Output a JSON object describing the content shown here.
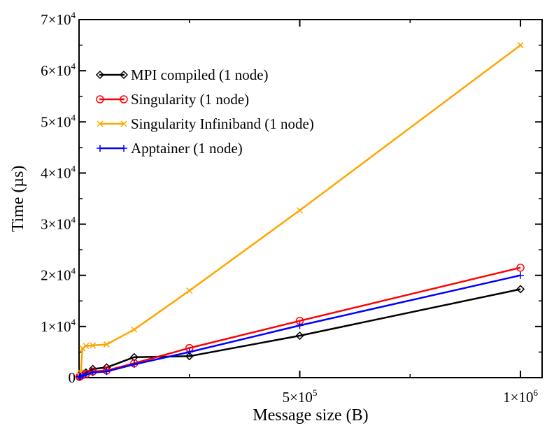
{
  "chart_data": {
    "type": "line",
    "xlabel": "Message size (B)",
    "ylabel": "Time (µs)",
    "xlim": [
      0,
      1100000
    ],
    "ylim": [
      0,
      70000
    ],
    "x_ticks": [
      {
        "value": 524288,
        "mantissa": "5",
        "exponent": "5"
      },
      {
        "value": 1048576,
        "mantissa": "1",
        "exponent": "6"
      }
    ],
    "y_ticks": [
      {
        "value": 0,
        "label": "0",
        "exponent": ""
      },
      {
        "value": 10000,
        "mantissa": "1",
        "exponent": "4"
      },
      {
        "value": 20000,
        "mantissa": "2",
        "exponent": "4"
      },
      {
        "value": 30000,
        "mantissa": "3",
        "exponent": "4"
      },
      {
        "value": 40000,
        "mantissa": "4",
        "exponent": "4"
      },
      {
        "value": 50000,
        "mantissa": "5",
        "exponent": "4"
      },
      {
        "value": 60000,
        "mantissa": "6",
        "exponent": "4"
      },
      {
        "value": 70000,
        "mantissa": "7",
        "exponent": "4"
      }
    ],
    "legend_position": "top-left",
    "grid": false,
    "x": [
      1024,
      2048,
      4096,
      8192,
      16384,
      32768,
      65536,
      131072,
      262144,
      524288,
      1048576
    ],
    "series": [
      {
        "name": "MPI compiled (1 node)",
        "color": "#000000",
        "marker": "diamond",
        "values": [
          200,
          300,
          450,
          700,
          1000,
          1700,
          2000,
          4000,
          4200,
          8200,
          17300
        ]
      },
      {
        "name": "Singularity (1 node)",
        "color": "#ff0000",
        "marker": "circle",
        "values": [
          150,
          250,
          350,
          500,
          700,
          1200,
          1400,
          2800,
          5800,
          11100,
          21500
        ]
      },
      {
        "name": "Singularity Infiniband (1 node)",
        "color": "#ffa500",
        "marker": "x",
        "values": [
          400,
          500,
          1000,
          5700,
          6200,
          6300,
          6500,
          9400,
          17000,
          32700,
          65000
        ]
      },
      {
        "name": "Apptainer (1 node)",
        "color": "#0000ff",
        "marker": "plus",
        "values": [
          100,
          200,
          300,
          400,
          600,
          1000,
          1200,
          2600,
          5000,
          10200,
          20000
        ]
      }
    ]
  }
}
